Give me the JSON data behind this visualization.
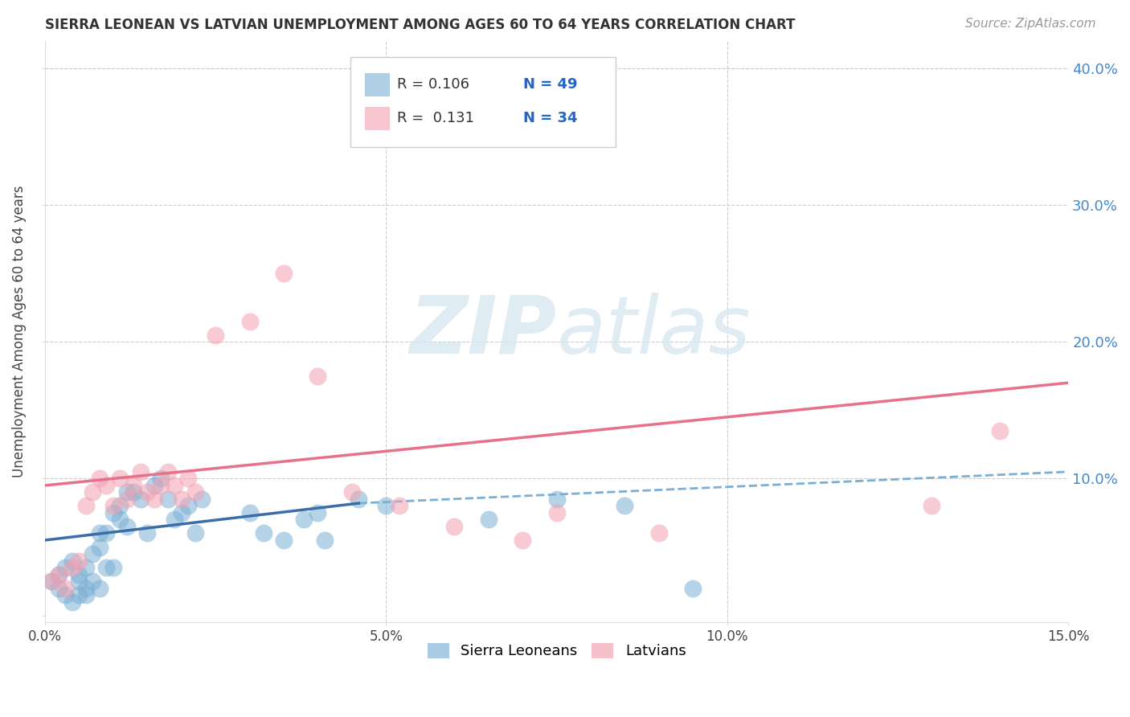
{
  "title": "SIERRA LEONEAN VS LATVIAN UNEMPLOYMENT AMONG AGES 60 TO 64 YEARS CORRELATION CHART",
  "source": "Source: ZipAtlas.com",
  "ylabel": "Unemployment Among Ages 60 to 64 years",
  "xlim": [
    0.0,
    0.15
  ],
  "ylim": [
    -0.005,
    0.42
  ],
  "xticks": [
    0.0,
    0.05,
    0.1,
    0.15
  ],
  "xtick_labels": [
    "0.0%",
    "5.0%",
    "10.0%",
    "15.0%"
  ],
  "yticks": [
    0.0,
    0.1,
    0.2,
    0.3,
    0.4
  ],
  "ytick_labels": [
    "",
    "10.0%",
    "20.0%",
    "30.0%",
    "40.0%"
  ],
  "legend_r1": "R = 0.106",
  "legend_n1": "N = 49",
  "legend_r2": "R =  0.131",
  "legend_n2": "N = 34",
  "blue_scatter_color": "#7BAFD4",
  "pink_scatter_color": "#F4A0B0",
  "blue_line_color": "#3B6EA8",
  "pink_line_color": "#E8708A",
  "dashed_line_color": "#7BAFD4",
  "watermark_color": "#D8E8F0",
  "sierra_x": [
    0.001,
    0.002,
    0.002,
    0.003,
    0.003,
    0.004,
    0.004,
    0.005,
    0.005,
    0.005,
    0.006,
    0.006,
    0.006,
    0.007,
    0.007,
    0.008,
    0.008,
    0.008,
    0.009,
    0.009,
    0.01,
    0.01,
    0.011,
    0.011,
    0.012,
    0.012,
    0.013,
    0.014,
    0.015,
    0.016,
    0.017,
    0.018,
    0.019,
    0.02,
    0.021,
    0.022,
    0.023,
    0.03,
    0.032,
    0.035,
    0.038,
    0.04,
    0.041,
    0.046,
    0.05,
    0.065,
    0.075,
    0.085,
    0.095
  ],
  "sierra_y": [
    0.025,
    0.02,
    0.03,
    0.015,
    0.035,
    0.01,
    0.04,
    0.025,
    0.03,
    0.015,
    0.02,
    0.035,
    0.015,
    0.045,
    0.025,
    0.06,
    0.05,
    0.02,
    0.06,
    0.035,
    0.075,
    0.035,
    0.07,
    0.08,
    0.09,
    0.065,
    0.09,
    0.085,
    0.06,
    0.095,
    0.1,
    0.085,
    0.07,
    0.075,
    0.08,
    0.06,
    0.085,
    0.075,
    0.06,
    0.055,
    0.07,
    0.075,
    0.055,
    0.085,
    0.08,
    0.07,
    0.085,
    0.08,
    0.02
  ],
  "latvian_x": [
    0.001,
    0.002,
    0.003,
    0.004,
    0.005,
    0.006,
    0.007,
    0.008,
    0.009,
    0.01,
    0.011,
    0.012,
    0.013,
    0.014,
    0.015,
    0.016,
    0.017,
    0.018,
    0.019,
    0.02,
    0.021,
    0.022,
    0.025,
    0.03,
    0.035,
    0.04,
    0.045,
    0.052,
    0.06,
    0.07,
    0.075,
    0.09,
    0.13,
    0.14
  ],
  "latvian_y": [
    0.025,
    0.03,
    0.02,
    0.035,
    0.04,
    0.08,
    0.09,
    0.1,
    0.095,
    0.08,
    0.1,
    0.085,
    0.095,
    0.105,
    0.09,
    0.085,
    0.095,
    0.105,
    0.095,
    0.085,
    0.1,
    0.09,
    0.205,
    0.215,
    0.25,
    0.175,
    0.09,
    0.08,
    0.065,
    0.055,
    0.075,
    0.06,
    0.08,
    0.135
  ],
  "blue_line_x0": 0.0,
  "blue_line_y0": 0.055,
  "blue_line_x1": 0.046,
  "blue_line_y1": 0.082,
  "pink_line_x0": 0.0,
  "pink_line_y0": 0.095,
  "pink_line_x1": 0.15,
  "pink_line_y1": 0.17,
  "dash_line_x0": 0.046,
  "dash_line_y0": 0.082,
  "dash_line_x1": 0.15,
  "dash_line_y1": 0.105
}
